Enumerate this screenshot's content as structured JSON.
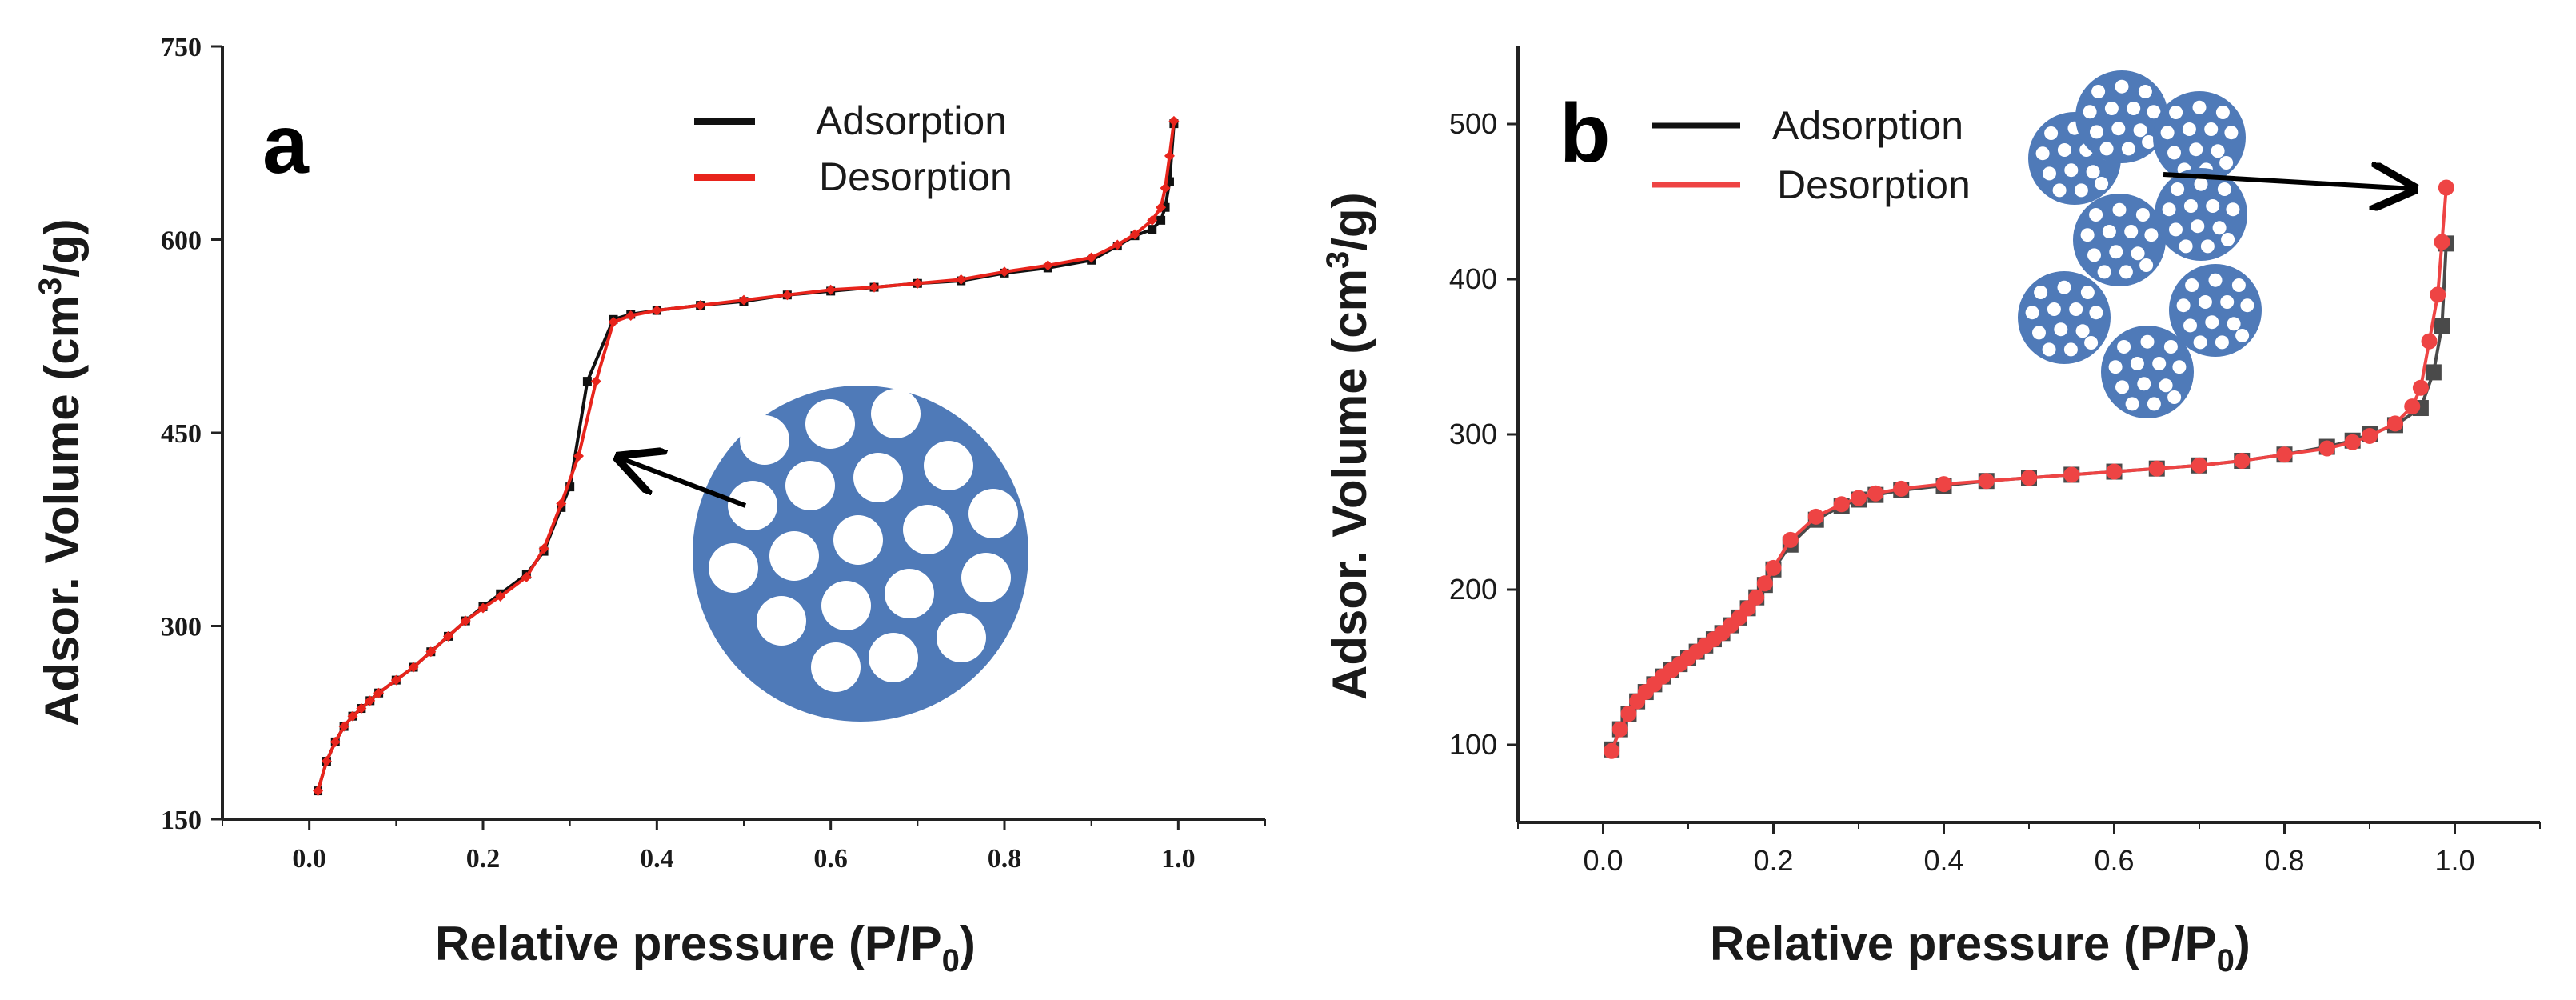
{
  "chart_data": [
    {
      "panel_label": "a",
      "type": "line",
      "xlabel_main": "Relative pressure  (P/P",
      "xlabel_sub": "0",
      "xlabel_close": ")",
      "ylabel_main": "Adsor. Volume  (cm",
      "ylabel_sup": "3",
      "ylabel_close": "/g)",
      "xlim": [
        -0.1,
        1.1
      ],
      "ylim": [
        150,
        750
      ],
      "xticks": [
        0.0,
        0.2,
        0.4,
        0.6,
        0.8,
        1.0
      ],
      "xtick_labels": [
        "0.0",
        "0.2",
        "0.4",
        "0.6",
        "0.8",
        "1.0"
      ],
      "yticks": [
        150,
        300,
        450,
        600,
        750
      ],
      "ytick_labels": [
        "150",
        "300",
        "450",
        "600",
        "750"
      ],
      "legend": [
        "Adsorption",
        "Desorption"
      ],
      "legend_position": "top-right",
      "annotation": "single mesoporous particle with arrow to capillary condensation step",
      "series": [
        {
          "name": "Adsorption",
          "color": "#111111",
          "marker": "square",
          "x": [
            0.01,
            0.02,
            0.03,
            0.04,
            0.05,
            0.06,
            0.07,
            0.08,
            0.1,
            0.12,
            0.14,
            0.16,
            0.18,
            0.2,
            0.22,
            0.25,
            0.27,
            0.29,
            0.3,
            0.32,
            0.35,
            0.37,
            0.4,
            0.45,
            0.5,
            0.55,
            0.6,
            0.65,
            0.7,
            0.75,
            0.8,
            0.85,
            0.9,
            0.93,
            0.95,
            0.97,
            0.98,
            0.985,
            0.99,
            0.995
          ],
          "y": [
            172,
            195,
            210,
            222,
            230,
            236,
            242,
            248,
            258,
            268,
            280,
            292,
            304,
            315,
            325,
            340,
            358,
            392,
            408,
            490,
            538,
            542,
            545,
            549,
            552,
            557,
            560,
            563,
            566,
            568,
            574,
            578,
            584,
            595,
            603,
            608,
            615,
            625,
            645,
            690
          ]
        },
        {
          "name": "Desorption",
          "color": "#e8241c",
          "marker": "diamond",
          "x": [
            0.01,
            0.02,
            0.03,
            0.04,
            0.05,
            0.06,
            0.07,
            0.08,
            0.1,
            0.12,
            0.14,
            0.16,
            0.18,
            0.2,
            0.22,
            0.25,
            0.27,
            0.29,
            0.31,
            0.33,
            0.35,
            0.37,
            0.4,
            0.45,
            0.5,
            0.55,
            0.6,
            0.65,
            0.7,
            0.75,
            0.8,
            0.85,
            0.9,
            0.93,
            0.95,
            0.97,
            0.98,
            0.985,
            0.99,
            0.995
          ],
          "y": [
            172,
            195,
            210,
            222,
            230,
            236,
            242,
            248,
            258,
            268,
            280,
            292,
            304,
            314,
            323,
            338,
            360,
            395,
            432,
            490,
            536,
            541,
            545,
            549,
            553,
            557,
            561,
            563,
            566,
            569,
            575,
            580,
            586,
            596,
            604,
            615,
            625,
            640,
            665,
            692
          ]
        }
      ]
    },
    {
      "panel_label": "b",
      "type": "line",
      "xlabel_main": "Relative pressure  (P/P",
      "xlabel_sub": "0",
      "xlabel_close": ")",
      "ylabel_main": "Adsor. Volume  (cm",
      "ylabel_sup": "3",
      "ylabel_close": "/g)",
      "xlim": [
        -0.1,
        1.1
      ],
      "ylim": [
        50,
        550
      ],
      "xticks": [
        0.0,
        0.2,
        0.4,
        0.6,
        0.8,
        1.0
      ],
      "xtick_labels": [
        "0.0",
        "0.2",
        "0.4",
        "0.6",
        "0.8",
        "1.0"
      ],
      "yticks": [
        100,
        200,
        300,
        400,
        500
      ],
      "ytick_labels": [
        "100",
        "200",
        "300",
        "400",
        "500"
      ],
      "legend": [
        "Adsorption",
        "Desorption"
      ],
      "legend_position": "top-left",
      "annotation": "cluster of mesoporous particles with arrow to high-pressure uptake",
      "series": [
        {
          "name": "Adsorption",
          "color": "#4a4a4a",
          "marker": "square",
          "x": [
            0.01,
            0.02,
            0.03,
            0.04,
            0.05,
            0.06,
            0.07,
            0.08,
            0.09,
            0.1,
            0.11,
            0.12,
            0.13,
            0.14,
            0.15,
            0.16,
            0.17,
            0.18,
            0.19,
            0.2,
            0.22,
            0.25,
            0.28,
            0.3,
            0.32,
            0.35,
            0.4,
            0.45,
            0.5,
            0.55,
            0.6,
            0.65,
            0.7,
            0.75,
            0.8,
            0.85,
            0.88,
            0.9,
            0.93,
            0.96,
            0.975,
            0.985,
            0.99
          ],
          "y": [
            97,
            110,
            120,
            128,
            134,
            139,
            144,
            148,
            152,
            156,
            160,
            164,
            168,
            172,
            177,
            182,
            188,
            195,
            203,
            213,
            229,
            245,
            254,
            258,
            261,
            264,
            267,
            270,
            272,
            274,
            276,
            278,
            280,
            283,
            287,
            292,
            296,
            300,
            306,
            317,
            340,
            370,
            423
          ]
        },
        {
          "name": "Desorption",
          "color": "#ee4444",
          "marker": "circle",
          "x": [
            0.01,
            0.02,
            0.03,
            0.04,
            0.05,
            0.06,
            0.07,
            0.08,
            0.09,
            0.1,
            0.11,
            0.12,
            0.13,
            0.14,
            0.15,
            0.16,
            0.17,
            0.18,
            0.19,
            0.2,
            0.22,
            0.25,
            0.28,
            0.3,
            0.32,
            0.35,
            0.4,
            0.45,
            0.5,
            0.55,
            0.6,
            0.65,
            0.7,
            0.75,
            0.8,
            0.85,
            0.88,
            0.9,
            0.93,
            0.95,
            0.96,
            0.97,
            0.98,
            0.985,
            0.99
          ],
          "y": [
            96,
            110,
            120,
            128,
            134,
            139,
            144,
            148,
            152,
            156,
            160,
            164,
            168,
            172,
            177,
            182,
            188,
            195,
            204,
            214,
            232,
            247,
            255,
            259,
            262,
            265,
            268,
            270,
            272,
            274,
            276,
            278,
            280,
            283,
            287,
            291,
            295,
            299,
            307,
            318,
            330,
            360,
            390,
            424,
            459
          ]
        }
      ]
    }
  ]
}
